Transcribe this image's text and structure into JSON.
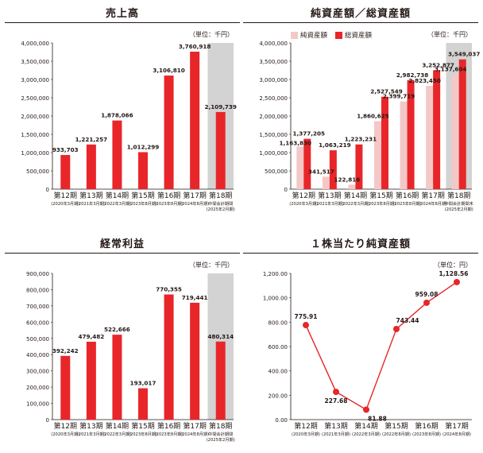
{
  "chart_data": [
    {
      "id": "sales",
      "type": "bar",
      "title": "売上高",
      "unit": "（単位：千円）",
      "ylim": [
        0,
        4000000
      ],
      "ytick_step": 500000,
      "ytick_labels": [
        "0",
        "500,000",
        "1,000,000",
        "1,500,000",
        "2,000,000",
        "2,500,000",
        "3,000,000",
        "3,500,000",
        "4,000,000"
      ],
      "categories": [
        "第12期",
        "第13期",
        "第14期",
        "第15期",
        "第16期",
        "第17期",
        "第18期"
      ],
      "subcategories": [
        "(2020年3月期)",
        "(2021年3月期)",
        "(2022年3月期)",
        "(2023年8月期)",
        "(2023年8月期)",
        "(2024年8月期)",
        "中間会計期間"
      ],
      "subcategories2": [
        "",
        "",
        "",
        "",
        "",
        "",
        "(2025年2月期)"
      ],
      "shaded_last": true,
      "series": [
        {
          "values": [
            933703,
            1221257,
            1878066,
            1012299,
            3106810,
            3760918,
            2109739
          ],
          "labels": [
            "933,703",
            "1,221,257",
            "1,878,066",
            "1,012,299",
            "3,106,810",
            "3,760,918",
            "2,109,739"
          ],
          "color": "#e8262a"
        }
      ]
    },
    {
      "id": "assets",
      "type": "bar",
      "title": "純資産額／総資産額",
      "unit": "（単位：千円）",
      "ylim": [
        0,
        4000000
      ],
      "ytick_step": 500000,
      "ytick_labels": [
        "0",
        "500,000",
        "1,000,000",
        "1,500,000",
        "2,000,000",
        "2,500,000",
        "3,000,000",
        "3,500,000",
        "4,000,000"
      ],
      "categories": [
        "第12期",
        "第13期",
        "第14期",
        "第15期",
        "第16期",
        "第17期",
        "第18期"
      ],
      "subcategories": [
        "(2020年3月期)",
        "(2021年3月期)",
        "(2022年3月期)",
        "(2023年8月期)",
        "(2023年8月期)",
        "(2024年8月期)",
        "中間会計期間末"
      ],
      "subcategories2": [
        "",
        "",
        "",
        "",
        "",
        "",
        "(2025年2月期)"
      ],
      "shaded_last": true,
      "series": [
        {
          "name": "純資産額",
          "values": [
            1163830,
            341517,
            122816,
            1860625,
            2399719,
            2823450,
            3137604
          ],
          "labels": [
            "1,163,830",
            "341,517",
            "122,816",
            "1,860,625",
            "2,399,719",
            "2,823,450",
            "3,137,604"
          ],
          "color": "#f4c8c6"
        },
        {
          "name": "総資産額",
          "values": [
            1377205,
            1063219,
            1223231,
            2527549,
            2982738,
            3252877,
            3549037
          ],
          "labels": [
            "1,377,205",
            "1,063,219",
            "1,223,231",
            "2,527,549",
            "2,982,738",
            "3,252,877",
            "3,549,037"
          ],
          "color": "#e8262a"
        }
      ]
    },
    {
      "id": "ordinary",
      "type": "bar",
      "title": "経常利益",
      "unit": "（単位：千円）",
      "ylim": [
        0,
        900000
      ],
      "ytick_step": 100000,
      "ytick_labels": [
        "0",
        "100,000",
        "200,000",
        "300,000",
        "400,000",
        "500,000",
        "600,000",
        "700,000",
        "800,000",
        "900,000"
      ],
      "categories": [
        "第12期",
        "第13期",
        "第14期",
        "第15期",
        "第16期",
        "第17期",
        "第18期"
      ],
      "subcategories": [
        "(2020年3月期)",
        "(2021年3月期)",
        "(2022年3月期)",
        "(2023年8月期)",
        "(2023年8月期)",
        "(2024年8月期)",
        "中間会計期間"
      ],
      "subcategories2": [
        "",
        "",
        "",
        "",
        "",
        "",
        "(2025年2月期)"
      ],
      "shaded_last": true,
      "series": [
        {
          "values": [
            392242,
            479482,
            522666,
            193017,
            770355,
            719441,
            480314
          ],
          "labels": [
            "392,242",
            "479,482",
            "522,666",
            "193,017",
            "770,355",
            "719,441",
            "480,314"
          ],
          "color": "#e8262a"
        }
      ]
    },
    {
      "id": "bps",
      "type": "line",
      "title": "１株当たり純資産額",
      "unit": "（単位：円）",
      "ylim": [
        0,
        1200
      ],
      "ytick_step": 200,
      "ytick_labels": [
        "0.00",
        "200.00",
        "400.00",
        "600.00",
        "800.00",
        "1,000.00",
        "1,200.00"
      ],
      "categories": [
        "第12期",
        "第13期",
        "第14期",
        "第15期",
        "第16期",
        "第17期"
      ],
      "subcategories": [
        "(2020年3月期)",
        "(2021年3月期)",
        "(2022年3月期)",
        "(2022年8月期)",
        "(2023年8月期)",
        "(2024年8月期)"
      ],
      "subcategories2": [
        "",
        "",
        "",
        "",
        "",
        ""
      ],
      "shaded_last": false,
      "series": [
        {
          "values": [
            775.91,
            227.68,
            81.88,
            743.44,
            959.08,
            1128.56
          ],
          "labels": [
            "775.91",
            "227.68",
            "81.88",
            "743.44",
            "959.08",
            "1,128.56"
          ],
          "color": "#e8262a"
        }
      ]
    }
  ]
}
